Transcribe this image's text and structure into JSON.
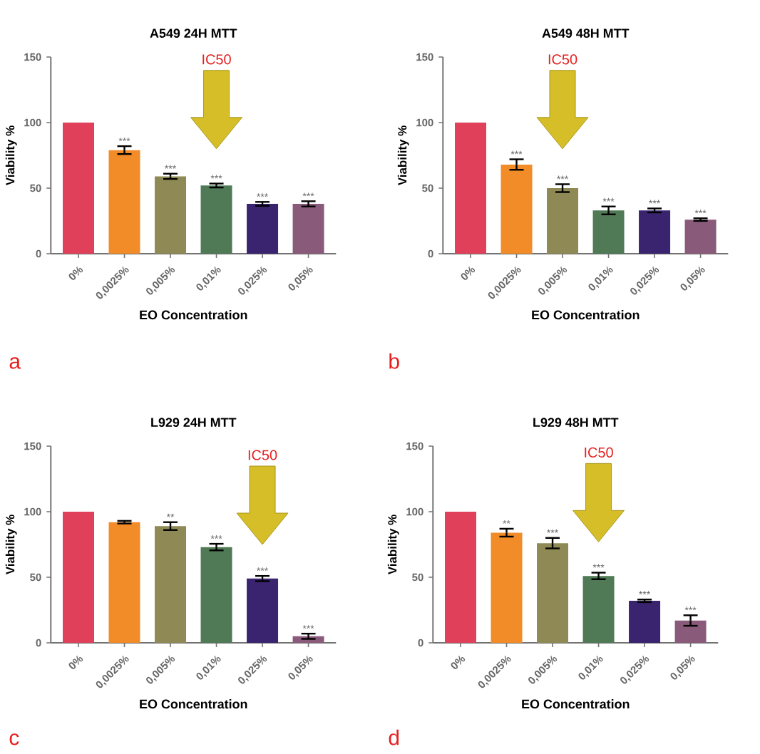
{
  "chart_data": [
    {
      "type": "bar",
      "title": "A549 24H MTT",
      "xlabel": "EO Concentration",
      "ylabel": "Viability %",
      "categories": [
        "0%",
        "0,0025%",
        "0,005%",
        "0,01%",
        "0,025%",
        "0,05%"
      ],
      "values": [
        100,
        79,
        59,
        52,
        38,
        38
      ],
      "errors": [
        null,
        3,
        2,
        1.5,
        1.5,
        2
      ],
      "colors": [
        "#e0405a",
        "#f28c28",
        "#8f8a55",
        "#4f7a55",
        "#3a2470",
        "#8a5a7a"
      ],
      "value_labels": [
        null,
        "***",
        "***",
        "***",
        "***",
        "***"
      ],
      "ylim": [
        0,
        150
      ],
      "yticks": [
        0,
        50,
        100,
        150
      ],
      "annotations": [
        "IC50",
        "a"
      ]
    },
    {
      "type": "bar",
      "title": "A549 48H MTT",
      "xlabel": "EO Concentration",
      "ylabel": "Viability %",
      "categories": [
        "0%",
        "0,0025%",
        "0,005%",
        "0,01%",
        "0,025%",
        "0,05%"
      ],
      "values": [
        100,
        68,
        50,
        33,
        33,
        26
      ],
      "errors": [
        null,
        4,
        3,
        3,
        1.5,
        1
      ],
      "colors": [
        "#e0405a",
        "#f28c28",
        "#8f8a55",
        "#4f7a55",
        "#3a2470",
        "#8a5a7a"
      ],
      "value_labels": [
        null,
        "***",
        "***",
        "***",
        "***",
        "***"
      ],
      "ylim": [
        0,
        150
      ],
      "yticks": [
        0,
        50,
        100,
        150
      ],
      "annotations": [
        "IC50",
        "b"
      ]
    },
    {
      "type": "bar",
      "title": "L929 24H MTT",
      "xlabel": "EO Concentration",
      "ylabel": "Viability %",
      "categories": [
        "0%",
        "0,0025%",
        "0,005%",
        "0,01%",
        "0,025%",
        "0,05%"
      ],
      "values": [
        100,
        92,
        89,
        73,
        49,
        5
      ],
      "errors": [
        null,
        1,
        3,
        2.5,
        2,
        2
      ],
      "colors": [
        "#e0405a",
        "#f28c28",
        "#8f8a55",
        "#4f7a55",
        "#3a2470",
        "#8a5a7a"
      ],
      "value_labels": [
        null,
        null,
        "**",
        "***",
        "***",
        "***"
      ],
      "ylim": [
        0,
        150
      ],
      "yticks": [
        0,
        50,
        100,
        150
      ],
      "annotations": [
        "IC50",
        "c"
      ]
    },
    {
      "type": "bar",
      "title": "L929 48H MTT",
      "xlabel": "EO Concentration",
      "ylabel": "Viability %",
      "categories": [
        "0%",
        "0,0025%",
        "0,005%",
        "0,01%",
        "0,025%",
        "0,05%"
      ],
      "values": [
        100,
        84,
        76,
        51,
        32,
        17
      ],
      "errors": [
        null,
        3,
        4,
        2.5,
        1,
        4
      ],
      "colors": [
        "#e0405a",
        "#f28c28",
        "#8f8a55",
        "#4f7a55",
        "#3a2470",
        "#8a5a7a"
      ],
      "value_labels": [
        null,
        "**",
        "***",
        "***",
        "***",
        "***"
      ],
      "ylim": [
        0,
        150
      ],
      "yticks": [
        0,
        50,
        100,
        150
      ],
      "annotations": [
        "IC50",
        "d"
      ]
    }
  ]
}
